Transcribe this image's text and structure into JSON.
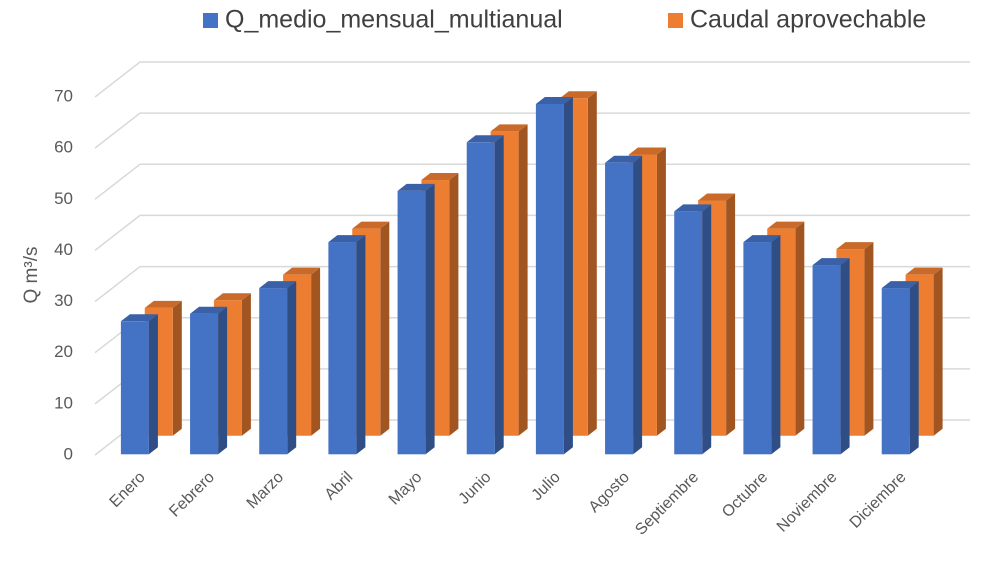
{
  "chart_data": {
    "type": "bar3d",
    "y_label": "Q m³/s",
    "categories": [
      "Enero",
      "Febrero",
      "Marzo",
      "Abril",
      "Mayo",
      "Junio",
      "Julio",
      "Agosto",
      "Septiembre",
      "Octubre",
      "Noviembre",
      "Diciembre"
    ],
    "series": [
      {
        "name": "Q_medio_mensual_multianual",
        "color": "#4472c4",
        "values": [
          26,
          27.5,
          32.5,
          41.5,
          51.5,
          61,
          68.5,
          57,
          47.5,
          41.5,
          37,
          32.5
        ]
      },
      {
        "name": "Caudal aprovechable",
        "color": "#ed7d31",
        "values": [
          25,
          26.5,
          31.5,
          40.5,
          50,
          59.5,
          66,
          55,
          46,
          40.5,
          36.5,
          31.5
        ]
      }
    ],
    "ylim": [
      0,
      70
    ],
    "yticks": [
      0,
      10,
      20,
      30,
      40,
      50,
      60,
      70
    ],
    "grid": true,
    "legend": "top"
  }
}
